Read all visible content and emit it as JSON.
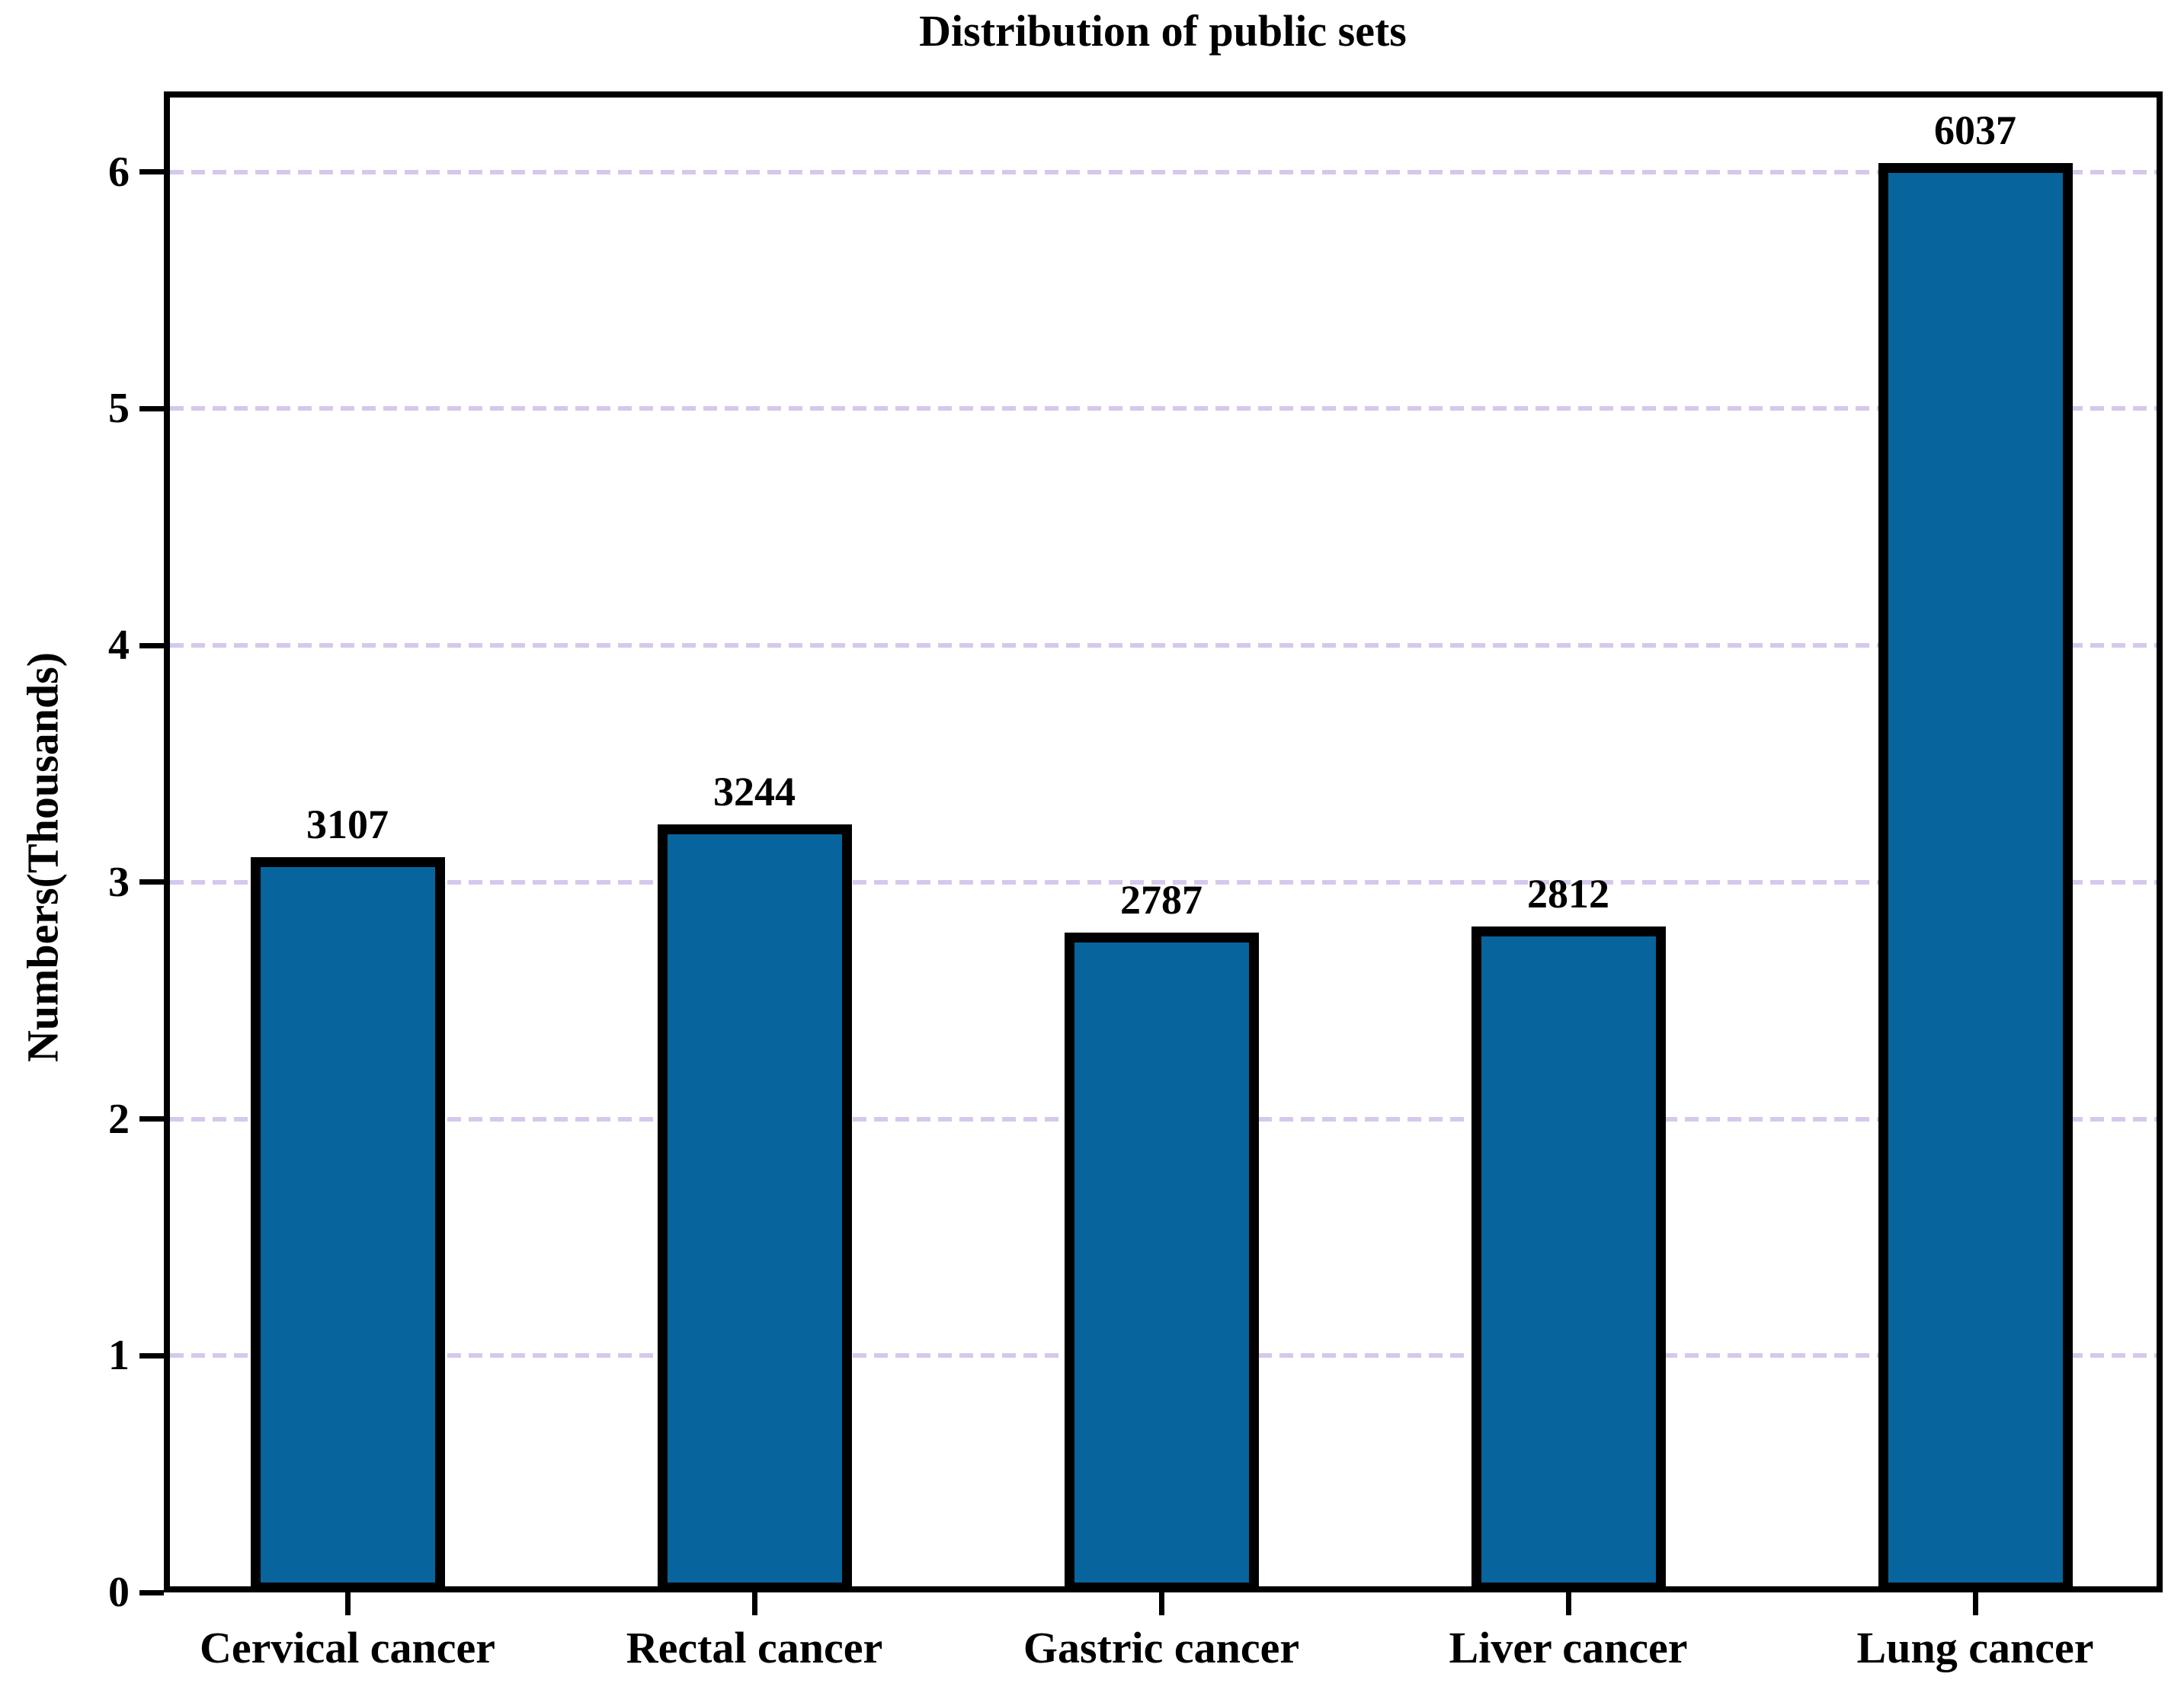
{
  "chart_data": {
    "type": "bar",
    "title": "Distribution of public sets",
    "xlabel": "",
    "ylabel": "Numbers(Thousands)",
    "categories": [
      "Cervical cancer",
      "Rectal cancer",
      "Gastric cancer",
      "Liver cancer",
      "Lung cancer"
    ],
    "values": [
      3107,
      3244,
      2787,
      2812,
      6037
    ],
    "value_unit_divisor": 1000,
    "yticks": [
      0,
      1,
      2,
      3,
      4,
      5,
      6
    ],
    "ylim": [
      0,
      6.34
    ],
    "grid": "horizontal dashed",
    "legend": null,
    "colors": {
      "bar_fill": "#08649c",
      "bar_edge": "#000000",
      "gridline": "#d6c8ec",
      "axis": "#000000",
      "text": "#000000",
      "background": "#ffffff"
    }
  }
}
